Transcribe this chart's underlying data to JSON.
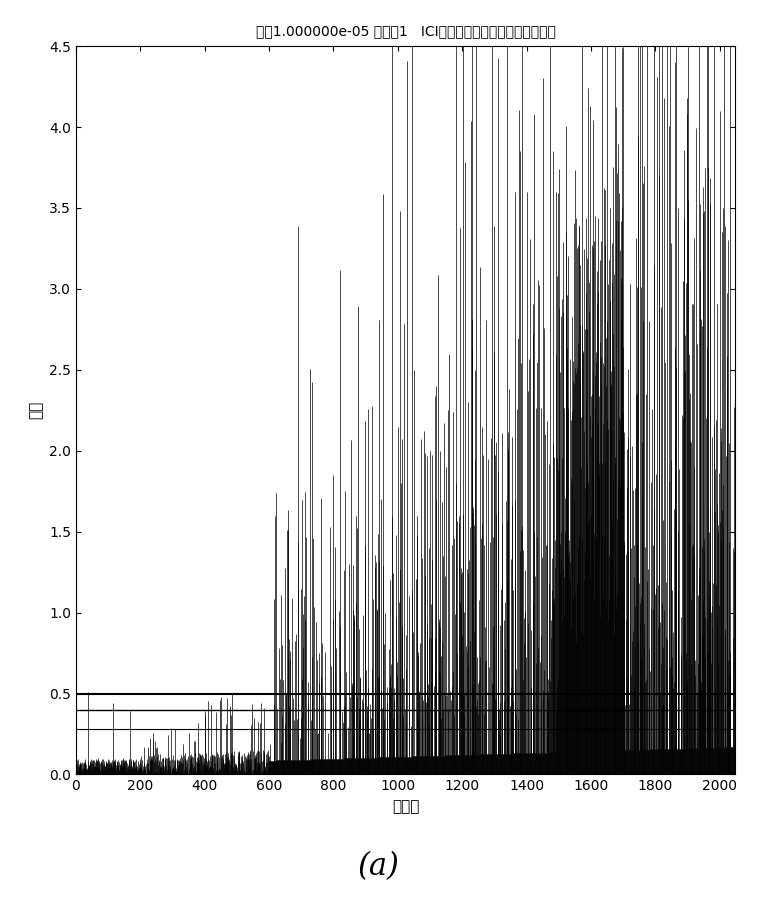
{
  "title": "模刃1.000000e-05 符号：1   ICI相位噪声占最大允许相移的比例",
  "xlabel": "子载波",
  "ylabel": "比値",
  "xlim": [
    0,
    2048
  ],
  "ylim": [
    0,
    4.5
  ],
  "xticks": [
    0,
    200,
    400,
    600,
    800,
    1000,
    1200,
    1400,
    1600,
    1800,
    2000
  ],
  "yticks": [
    0,
    0.5,
    1.0,
    1.5,
    2.0,
    2.5,
    3.0,
    3.5,
    4.0,
    4.5
  ],
  "hline1": 0.5,
  "hline2": 0.4,
  "hline3": 0.28,
  "n_carriers": 2048,
  "subtitle": "(a)",
  "background_color": "#ffffff",
  "line_color": "#000000",
  "title_fontsize": 10,
  "label_fontsize": 11,
  "subtitle_fontsize": 22
}
